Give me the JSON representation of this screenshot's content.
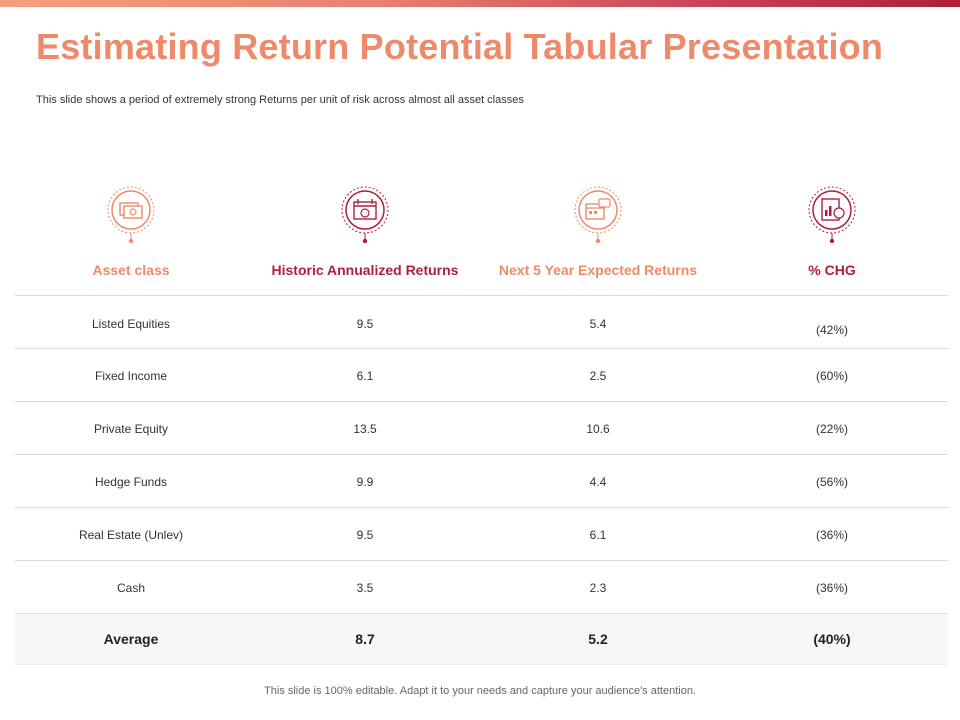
{
  "slide": {
    "title": "Estimating Return Potential Tabular Presentation",
    "subtitle": "This slide shows a period of extremely strong Returns per unit of risk across almost all asset classes",
    "footer": "This slide is 100% editable. Adapt it to your needs and capture your audience's attention."
  },
  "colors": {
    "orange": "#ee8a6a",
    "crimson": "#b01e3c"
  },
  "columns": [
    {
      "label": "Asset class",
      "icon": "money-icon",
      "color": "orange"
    },
    {
      "label": "Historic Annualized Returns",
      "icon": "calendar-icon",
      "color": "crimson"
    },
    {
      "label": "Next 5 Year Expected Returns",
      "icon": "calendar-chat-icon",
      "color": "orange"
    },
    {
      "label": "% CHG",
      "icon": "report-chart-icon",
      "color": "crimson"
    }
  ],
  "rows": [
    {
      "asset": "Listed Equities",
      "historic": "9.5",
      "expected": "5.4",
      "chg": "(42%)"
    },
    {
      "asset": "Fixed Income",
      "historic": "6.1",
      "expected": "2.5",
      "chg": "(60%)"
    },
    {
      "asset": "Private Equity",
      "historic": "13.5",
      "expected": "10.6",
      "chg": "(22%)"
    },
    {
      "asset": "Hedge Funds",
      "historic": "9.9",
      "expected": "4.4",
      "chg": "(56%)"
    },
    {
      "asset": "Real Estate (Unlev)",
      "historic": "9.5",
      "expected": "6.1",
      "chg": "(36%)"
    },
    {
      "asset": "Cash",
      "historic": "3.5",
      "expected": "2.3",
      "chg": "(36%)"
    }
  ],
  "average": {
    "label": "Average",
    "historic": "8.7",
    "expected": "5.2",
    "chg": "(40%)"
  }
}
